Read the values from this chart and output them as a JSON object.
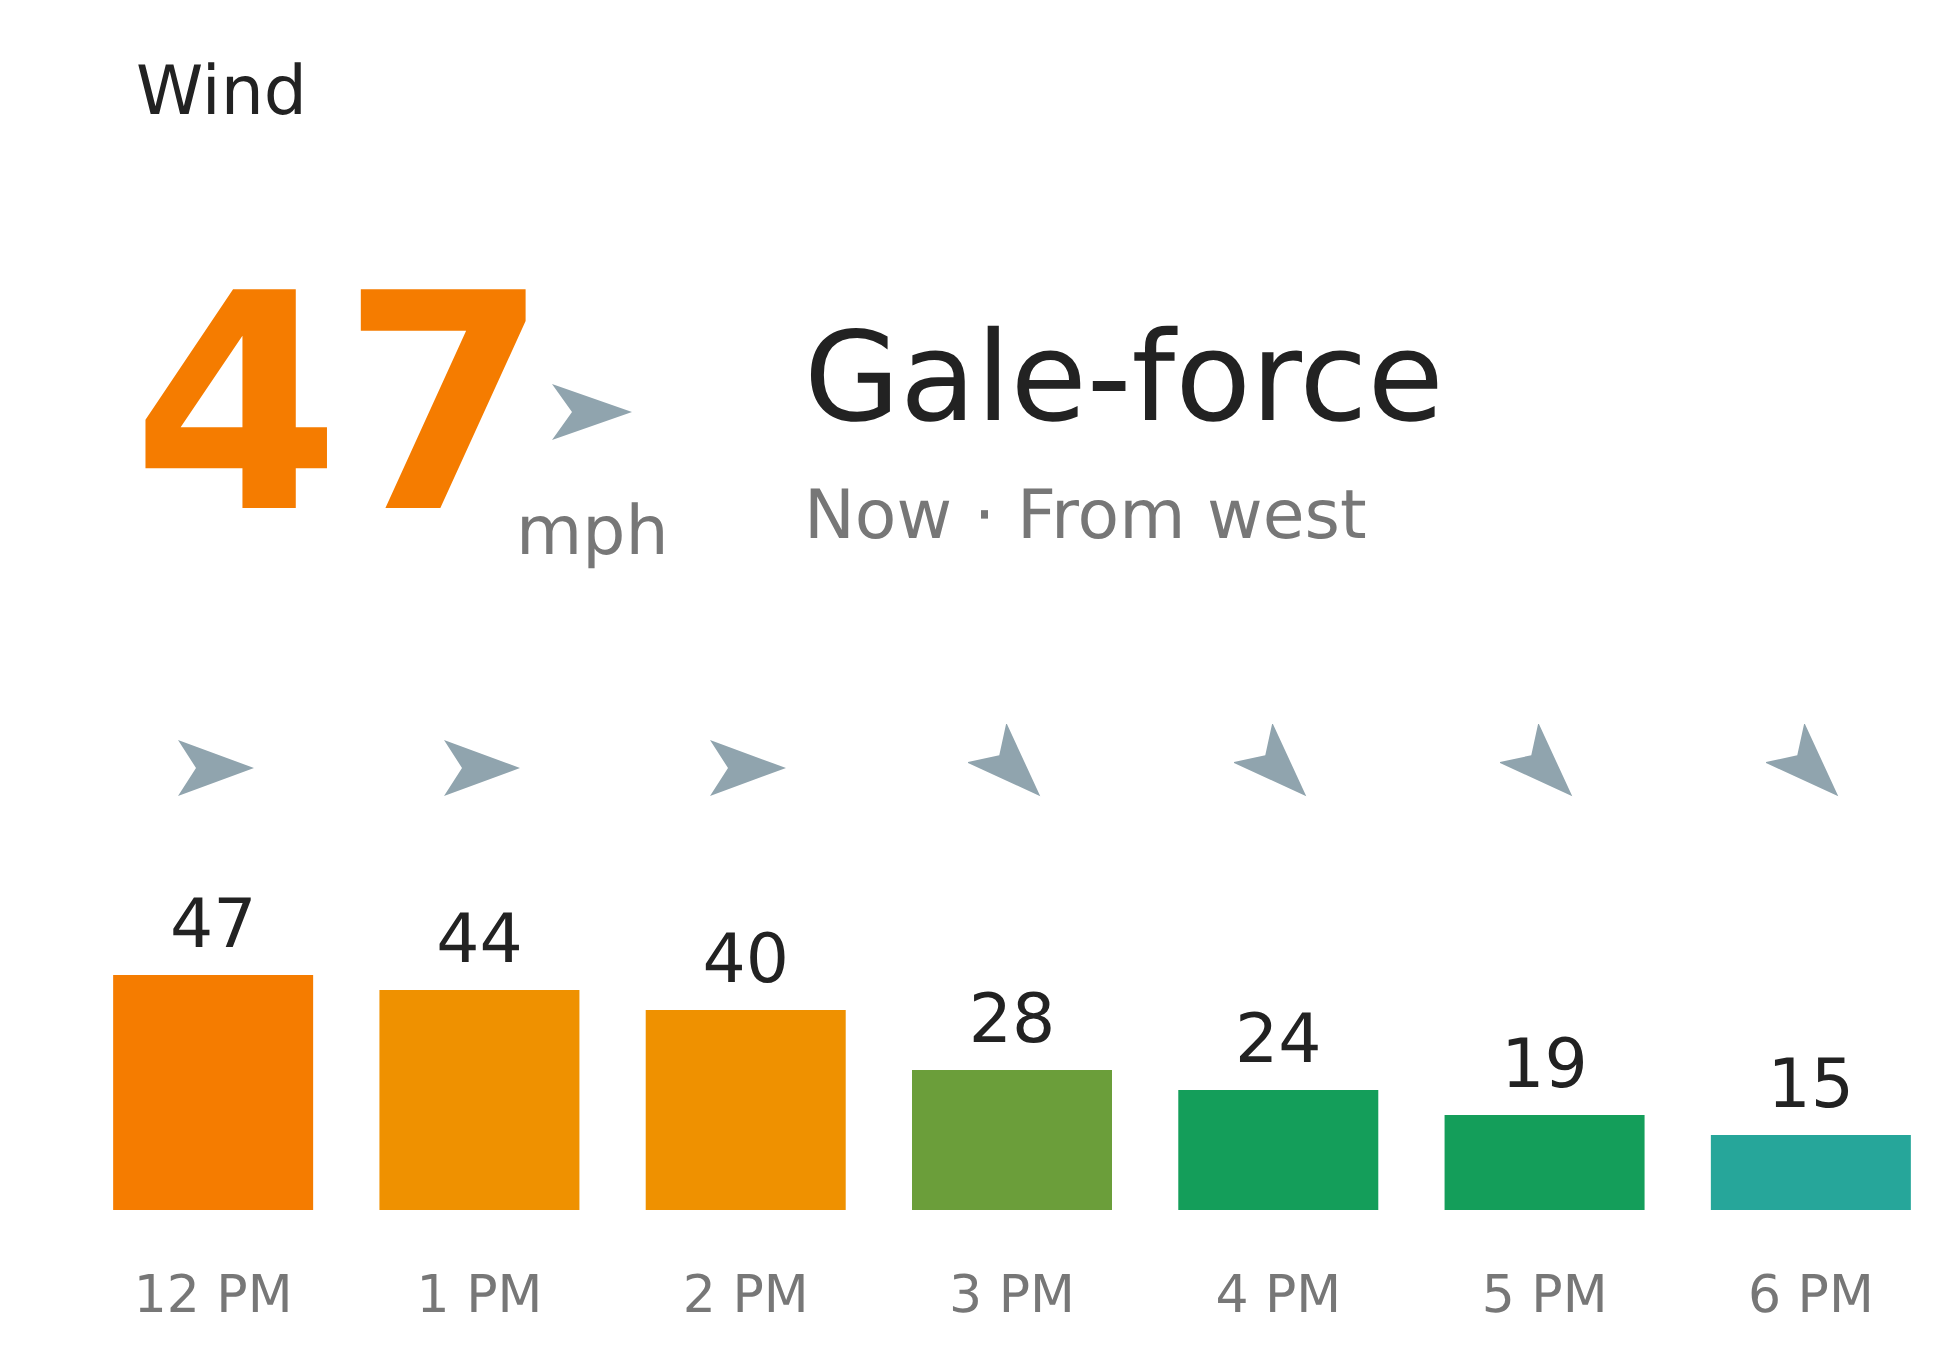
{
  "chart_data": {
    "type": "bar",
    "title": "Wind",
    "annotations": [
      "47",
      "mph",
      "Gale-force",
      "Now · From west"
    ],
    "categories": [
      "12 PM",
      "1 PM",
      "2 PM",
      "3 PM",
      "4 PM",
      "5 PM",
      "6 PM"
    ],
    "values": [
      47,
      44,
      40,
      28,
      24,
      19,
      15
    ],
    "colors": [
      "#f57c00",
      "#ef9100",
      "#ef9100",
      "#6b9e3a",
      "#149e5a",
      "#149e5a",
      "#26a69a"
    ],
    "data_labels": true
  }
}
